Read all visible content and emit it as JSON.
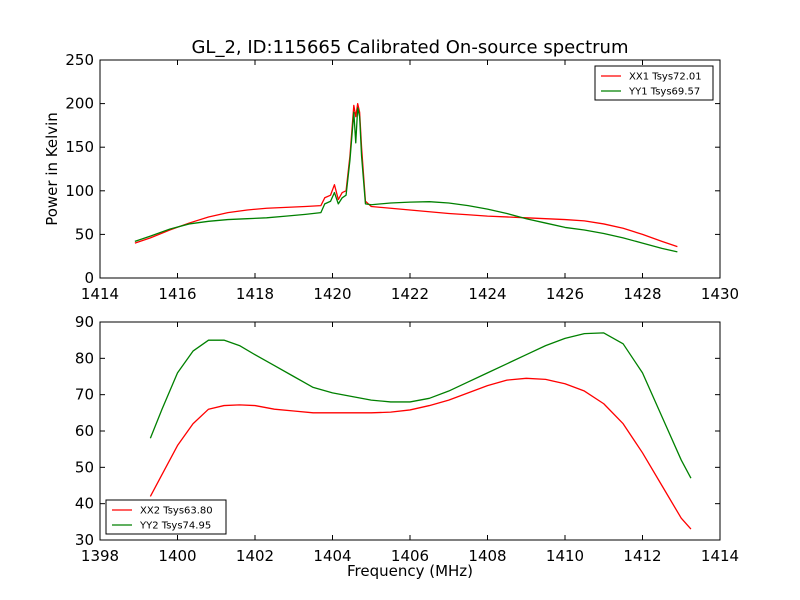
{
  "chart_data": [
    {
      "type": "line",
      "title": "GL_2, ID:115665 Calibrated On-source spectrum",
      "xlabel": "",
      "ylabel": "Power in Kelvin",
      "xlim": [
        1414,
        1430
      ],
      "ylim": [
        0,
        250
      ],
      "xticks": [
        1414,
        1416,
        1418,
        1420,
        1422,
        1424,
        1426,
        1428,
        1430
      ],
      "yticks": [
        0,
        50,
        100,
        150,
        200,
        250
      ],
      "grid": false,
      "legend_position": "top-right",
      "series": [
        {
          "name": "XX1 Tsys72.01",
          "color": "#ff0000",
          "x": [
            1414.9,
            1415.3,
            1415.8,
            1416.3,
            1416.8,
            1417.3,
            1417.8,
            1418.3,
            1418.8,
            1419.3,
            1419.7,
            1419.8,
            1419.95,
            1420.05,
            1420.15,
            1420.25,
            1420.35,
            1420.45,
            1420.55,
            1420.6,
            1420.65,
            1420.7,
            1420.75,
            1420.85,
            1421.0,
            1421.5,
            1422.0,
            1422.5,
            1423.0,
            1423.5,
            1424.0,
            1424.5,
            1425.0,
            1425.5,
            1426.0,
            1426.5,
            1427.0,
            1427.5,
            1428.0,
            1428.5,
            1428.9
          ],
          "y": [
            40,
            46,
            55,
            63,
            70,
            75,
            78,
            80,
            81,
            82,
            83,
            92,
            95,
            107,
            90,
            98,
            100,
            140,
            198,
            185,
            200,
            190,
            150,
            88,
            82,
            80,
            78,
            76,
            74,
            72.5,
            71,
            70,
            69,
            68,
            67,
            65.5,
            62,
            57,
            50,
            42,
            36
          ]
        },
        {
          "name": "YY1 Tsys69.57",
          "color": "#008000",
          "x": [
            1414.9,
            1415.3,
            1415.8,
            1416.3,
            1416.8,
            1417.3,
            1417.8,
            1418.3,
            1418.8,
            1419.3,
            1419.7,
            1419.8,
            1419.95,
            1420.05,
            1420.15,
            1420.25,
            1420.35,
            1420.45,
            1420.55,
            1420.6,
            1420.65,
            1420.7,
            1420.75,
            1420.85,
            1421.0,
            1421.5,
            1422.0,
            1422.5,
            1423.0,
            1423.5,
            1424.0,
            1424.5,
            1425.0,
            1425.5,
            1426.0,
            1426.5,
            1427.0,
            1427.5,
            1428.0,
            1428.5,
            1428.9
          ],
          "y": [
            42,
            48,
            56,
            62,
            65,
            67,
            68,
            69,
            71,
            73,
            75,
            85,
            88,
            98,
            85,
            92,
            95,
            135,
            190,
            155,
            195,
            185,
            140,
            85,
            84,
            86,
            87,
            87.5,
            86,
            83,
            79,
            74,
            68,
            63,
            58,
            55,
            51,
            46,
            40,
            34,
            30
          ]
        }
      ]
    },
    {
      "type": "line",
      "title": "",
      "xlabel": "Frequency (MHz)",
      "ylabel": "",
      "xlim": [
        1398,
        1414
      ],
      "ylim": [
        30,
        90
      ],
      "xticks": [
        1398,
        1400,
        1402,
        1404,
        1406,
        1408,
        1410,
        1412,
        1414
      ],
      "yticks": [
        30,
        40,
        50,
        60,
        70,
        80,
        90
      ],
      "grid": false,
      "legend_position": "bottom-left",
      "series": [
        {
          "name": "XX2 Tsys63.80",
          "color": "#ff0000",
          "x": [
            1399.3,
            1399.6,
            1400.0,
            1400.4,
            1400.8,
            1401.2,
            1401.6,
            1402.0,
            1402.5,
            1403.0,
            1403.5,
            1404.0,
            1404.5,
            1405.0,
            1405.5,
            1406.0,
            1406.5,
            1407.0,
            1407.5,
            1408.0,
            1408.5,
            1409.0,
            1409.5,
            1410.0,
            1410.5,
            1411.0,
            1411.5,
            1412.0,
            1412.5,
            1413.0,
            1413.25
          ],
          "y": [
            42,
            48,
            56,
            62,
            66,
            67,
            67.2,
            67,
            66,
            65.5,
            65,
            65,
            65,
            65,
            65.2,
            65.8,
            67,
            68.5,
            70.5,
            72.5,
            74,
            74.5,
            74.2,
            73,
            71,
            67.5,
            62,
            54,
            45,
            36,
            33
          ]
        },
        {
          "name": "YY2 Tsys74.95",
          "color": "#008000",
          "x": [
            1399.3,
            1399.6,
            1400.0,
            1400.4,
            1400.8,
            1401.2,
            1401.6,
            1402.0,
            1402.5,
            1403.0,
            1403.5,
            1404.0,
            1404.5,
            1405.0,
            1405.5,
            1406.0,
            1406.5,
            1407.0,
            1407.5,
            1408.0,
            1408.5,
            1409.0,
            1409.5,
            1410.0,
            1410.5,
            1411.0,
            1411.5,
            1412.0,
            1412.5,
            1413.0,
            1413.25
          ],
          "y": [
            58,
            66,
            76,
            82,
            85,
            85,
            83.5,
            81,
            78,
            75,
            72,
            70.5,
            69.5,
            68.5,
            68,
            68,
            69,
            71,
            73.5,
            76,
            78.5,
            81,
            83.5,
            85.5,
            86.8,
            87,
            84,
            76,
            64,
            52,
            47
          ]
        }
      ]
    }
  ]
}
